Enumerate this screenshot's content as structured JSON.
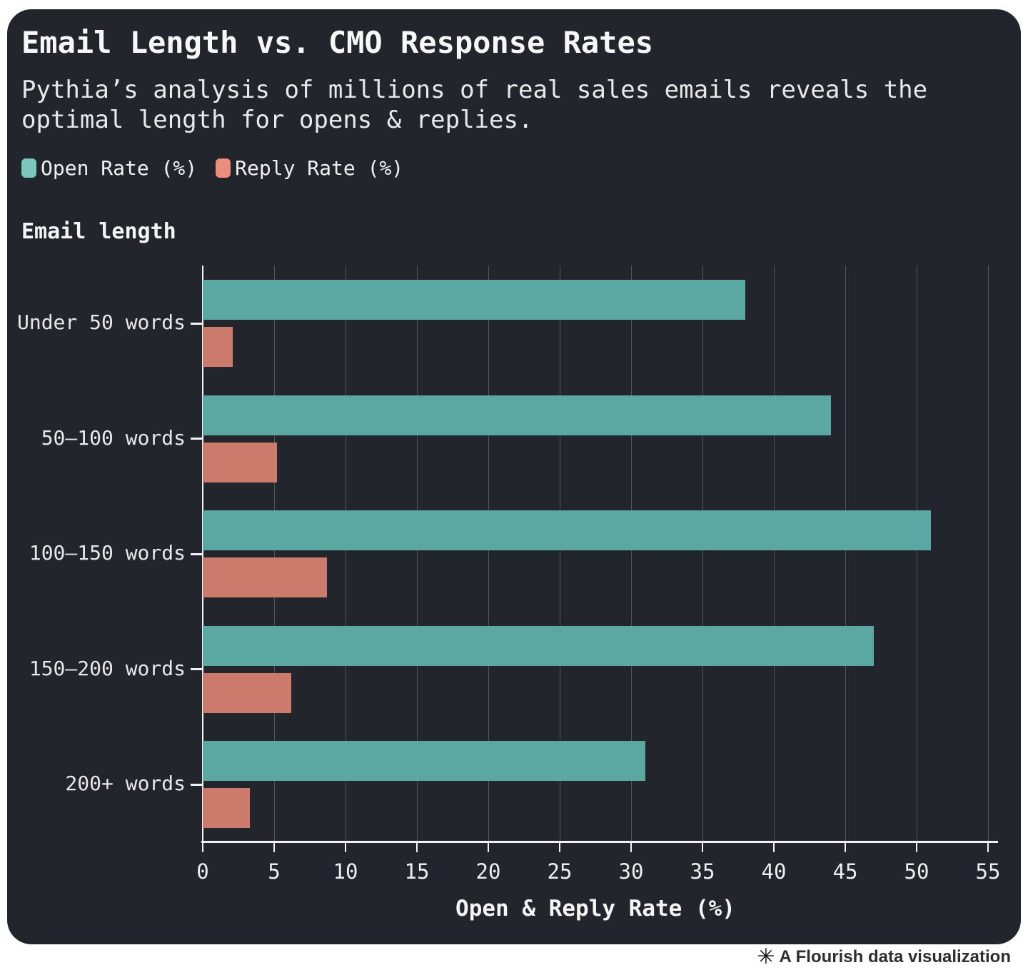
{
  "header": {
    "title": "Email Length vs. CMO Response Rates",
    "subtitle": "Pythia’s analysis of millions of real sales emails reveals the optimal length for opens & replies."
  },
  "legend": [
    {
      "label": "Open Rate (%)",
      "swatch_color": "#7bc7bd"
    },
    {
      "label": "Reply Rate (%)",
      "swatch_color": "#ee8c7d"
    }
  ],
  "chart_data": {
    "type": "bar",
    "orientation": "horizontal",
    "title": "Email Length vs. CMO Response Rates",
    "subtitle": "Pythia’s analysis of millions of real sales emails reveals the optimal length for opens & replies.",
    "categories": [
      "Under 50 words",
      "50–100 words",
      "100–150 words",
      "150–200 words",
      "200+ words"
    ],
    "series": [
      {
        "name": "Open Rate (%)",
        "color": "#5ba7a2",
        "values": [
          38,
          44,
          51,
          47,
          31
        ]
      },
      {
        "name": "Reply Rate (%)",
        "color": "#cb7a6b",
        "values": [
          2.1,
          5.2,
          8.7,
          6.2,
          3.3
        ]
      }
    ],
    "xlabel": "Open & Reply Rate (%)",
    "ylabel": "Email length",
    "xlim": [
      0,
      55
    ],
    "xticks": [
      0,
      5,
      10,
      15,
      20,
      25,
      30,
      35,
      40,
      45,
      50,
      55
    ],
    "grid": true,
    "legend_position": "top-left",
    "background_color": "#23252d"
  },
  "footer": {
    "logo": "✳",
    "attribution": "A Flourish data visualization"
  }
}
